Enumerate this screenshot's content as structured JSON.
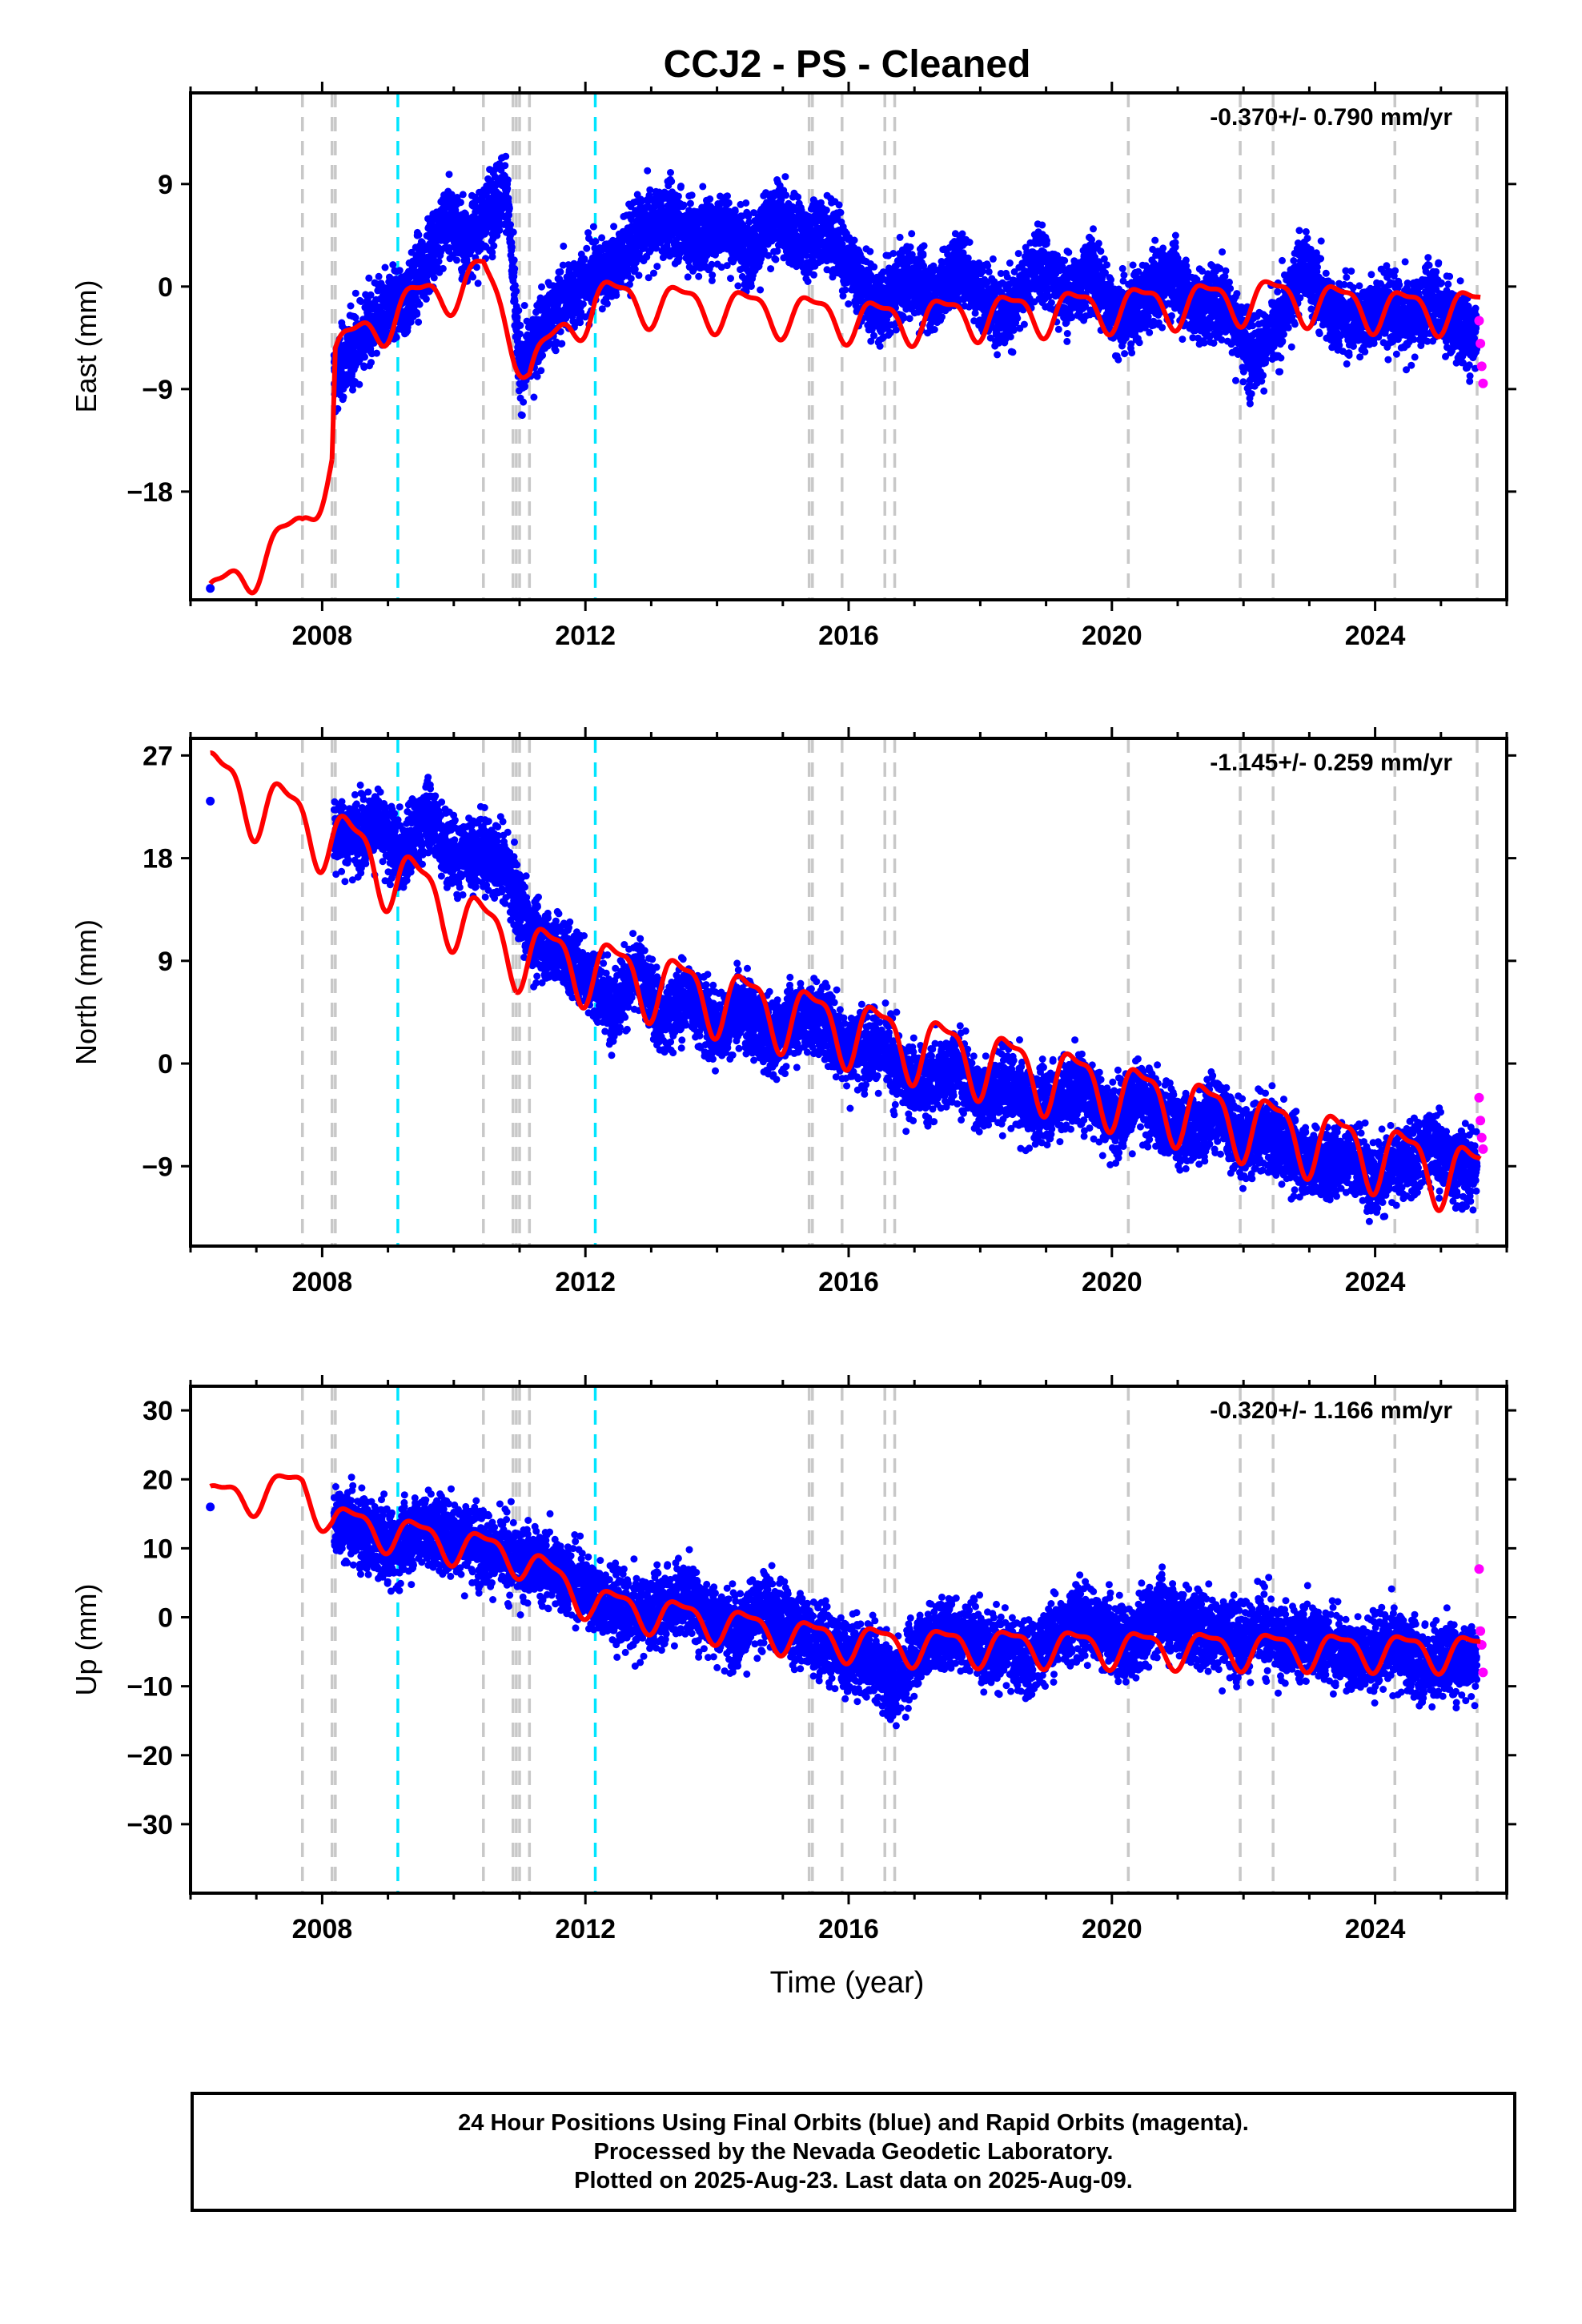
{
  "chart_data": {
    "type": "scatter",
    "title": "CCJ2  - PS - Cleaned",
    "xlabel": "Time (year)",
    "xlim": [
      2006.0,
      2026.0
    ],
    "x_ticks": [
      2008,
      2012,
      2016,
      2020,
      2024
    ],
    "colors": {
      "final_orbits": "#0000ff",
      "rapid_orbits": "#ff00ff",
      "model": "#ff0000",
      "equipment_change": "#c8c8c8",
      "earthquake": "#00e5ff"
    },
    "steps_gray": [
      2007.7,
      2008.15,
      2008.2,
      2010.45,
      2010.9,
      2010.95,
      2011.0,
      2011.15,
      2015.4,
      2015.45,
      2015.9,
      2016.55,
      2016.7,
      2020.25,
      2021.95,
      2022.45,
      2024.3,
      2025.55
    ],
    "steps_cyan": [
      2009.15,
      2012.15
    ],
    "panels": [
      {
        "ylabel": "East (mm)",
        "ylim": [
          -27.5,
          17.0
        ],
        "yticks": [
          -18,
          -9,
          0,
          9
        ],
        "rate": "-0.370+/- 0.790 mm/yr",
        "model": {
          "offsets": [
            [
              2006.3,
              -27.5
            ],
            [
              2007.7,
              -21
            ],
            [
              2008.15,
              -15
            ],
            [
              2008.2,
              -6
            ],
            [
              2009.15,
              -2
            ],
            [
              2010.45,
              1
            ],
            [
              2011.0,
              -5.5
            ],
            [
              2011.15,
              -7.5
            ],
            [
              2012.15,
              -1
            ],
            [
              2016.55,
              -3
            ],
            [
              2022.45,
              -1
            ],
            [
              2024.3,
              -2
            ]
          ],
          "trend": 0.0,
          "amplitude": 1.8,
          "segments": [
            [
              2006.3,
              2008.15
            ],
            [
              2008.15,
              2010.95
            ],
            [
              2010.95,
              2016.7
            ],
            [
              2016.7,
              2022.45
            ],
            [
              2022.45,
              2025.6
            ]
          ]
        },
        "series": [
          {
            "name": "Final Orbits",
            "points": [
              [
                2006.3,
                -26.5
              ],
              [
                2008.5,
                -5
              ],
              [
                2008.8,
                -3
              ],
              [
                2009.3,
                -1
              ],
              [
                2009.6,
                2.5
              ],
              [
                2009.9,
                6
              ],
              [
                2010.2,
                4
              ],
              [
                2010.6,
                7
              ],
              [
                2010.8,
                9
              ],
              [
                2011.0,
                -7.5
              ],
              [
                2011.3,
                -4
              ],
              [
                2011.7,
                -1
              ],
              [
                2012.1,
                1
              ],
              [
                2012.5,
                2
              ],
              [
                2012.9,
                5
              ],
              [
                2013.3,
                6
              ],
              [
                2013.7,
                4
              ],
              [
                2014.1,
                5.5
              ],
              [
                2014.5,
                3
              ],
              [
                2014.9,
                6
              ],
              [
                2015.3,
                4
              ],
              [
                2015.7,
                5
              ],
              [
                2016.1,
                1
              ],
              [
                2016.5,
                -2
              ],
              [
                2016.9,
                1
              ],
              [
                2017.3,
                -1
              ],
              [
                2017.7,
                2
              ],
              [
                2018.1,
                -1.5
              ],
              [
                2018.5,
                -2
              ],
              [
                2018.9,
                2.5
              ],
              [
                2019.3,
                -1
              ],
              [
                2019.7,
                1.5
              ],
              [
                2020.1,
                -3
              ],
              [
                2020.5,
                -1
              ],
              [
                2020.9,
                1
              ],
              [
                2021.3,
                -2
              ],
              [
                2021.7,
                -1
              ],
              [
                2022.1,
                -6
              ],
              [
                2022.5,
                -4
              ],
              [
                2022.9,
                2
              ],
              [
                2023.3,
                -2
              ],
              [
                2023.7,
                -3
              ],
              [
                2024.1,
                -2
              ],
              [
                2024.5,
                -3
              ],
              [
                2024.9,
                -1
              ],
              [
                2025.3,
                -4
              ]
            ]
          },
          {
            "name": "Rapid Orbits",
            "points": [
              [
                2025.58,
                -3
              ],
              [
                2025.6,
                -5
              ],
              [
                2025.62,
                -7
              ],
              [
                2025.64,
                -8.5
              ]
            ]
          }
        ]
      },
      {
        "ylabel": "North (mm)",
        "ylim": [
          -16.0,
          28.5
        ],
        "yticks": [
          -9,
          0,
          9,
          18,
          27
        ],
        "rate": "-1.145+/- 0.259 mm/yr",
        "model": {
          "offsets": [
            [
              2006.3,
              25
            ],
            [
              2008.15,
              20
            ],
            [
              2010.95,
              10
            ],
            [
              2025.6,
              -10
            ]
          ],
          "trend": 0.0,
          "amplitude": 2.8,
          "segments": [
            [
              2006.3,
              2008.15
            ],
            [
              2008.15,
              2010.95
            ],
            [
              2010.95,
              2025.6
            ]
          ]
        },
        "series": [
          {
            "name": "Final Orbits",
            "points": [
              [
                2006.3,
                23
              ],
              [
                2008.4,
                20
              ],
              [
                2008.8,
                21
              ],
              [
                2009.2,
                18
              ],
              [
                2009.6,
                22
              ],
              [
                2010.0,
                18
              ],
              [
                2010.4,
                19
              ],
              [
                2010.8,
                17
              ],
              [
                2011.2,
                11
              ],
              [
                2011.6,
                10
              ],
              [
                2012.0,
                8
              ],
              [
                2012.4,
                5
              ],
              [
                2012.8,
                8
              ],
              [
                2013.2,
                4
              ],
              [
                2013.6,
                6
              ],
              [
                2014.0,
                3
              ],
              [
                2014.4,
                5
              ],
              [
                2014.8,
                2
              ],
              [
                2015.2,
                4
              ],
              [
                2015.6,
                4
              ],
              [
                2016.0,
                1
              ],
              [
                2016.4,
                2
              ],
              [
                2016.8,
                -1
              ],
              [
                2017.2,
                -2
              ],
              [
                2017.6,
                0
              ],
              [
                2018.0,
                -3
              ],
              [
                2018.4,
                -2
              ],
              [
                2018.8,
                -4
              ],
              [
                2019.2,
                -3
              ],
              [
                2019.6,
                -2
              ],
              [
                2020.0,
                -5
              ],
              [
                2020.4,
                -3
              ],
              [
                2020.8,
                -5
              ],
              [
                2021.2,
                -6
              ],
              [
                2021.6,
                -4
              ],
              [
                2022.0,
                -7
              ],
              [
                2022.4,
                -6
              ],
              [
                2022.8,
                -8
              ],
              [
                2023.2,
                -9
              ],
              [
                2023.6,
                -8
              ],
              [
                2024.0,
                -10
              ],
              [
                2024.4,
                -9
              ],
              [
                2024.8,
                -7
              ],
              [
                2025.2,
                -9
              ]
            ]
          },
          {
            "name": "Rapid Orbits",
            "points": [
              [
                2025.58,
                -3
              ],
              [
                2025.6,
                -5
              ],
              [
                2025.62,
                -6.5
              ],
              [
                2025.64,
                -7.5
              ]
            ]
          }
        ]
      },
      {
        "ylabel": "Up (mm)",
        "ylim": [
          -40.0,
          33.5
        ],
        "yticks": [
          -30,
          -20,
          -10,
          0,
          10,
          20,
          30
        ],
        "rate": "-0.320+/- 1.166 mm/yr",
        "model": {
          "offsets": [
            [
              2006.3,
              17
            ],
            [
              2007.7,
              19
            ],
            [
              2008.15,
              14
            ],
            [
              2010.95,
              9
            ],
            [
              2012.15,
              2
            ],
            [
              2015.45,
              -3
            ],
            [
              2016.7,
              -4
            ],
            [
              2025.6,
              -5
            ]
          ],
          "trend": 0.0,
          "amplitude": 2.5,
          "segments": [
            [
              2006.3,
              2008.2
            ],
            [
              2008.2,
              2010.95
            ],
            [
              2010.95,
              2012.15
            ],
            [
              2012.15,
              2015.45
            ],
            [
              2015.45,
              2016.7
            ],
            [
              2016.7,
              2025.6
            ]
          ]
        },
        "series": [
          {
            "name": "Final Orbits",
            "points": [
              [
                2006.3,
                16
              ],
              [
                2008.3,
                14
              ],
              [
                2008.7,
                12
              ],
              [
                2009.1,
                10
              ],
              [
                2009.5,
                13
              ],
              [
                2009.9,
                12
              ],
              [
                2010.3,
                11
              ],
              [
                2010.7,
                9
              ],
              [
                2011.1,
                8
              ],
              [
                2011.5,
                7
              ],
              [
                2011.9,
                5
              ],
              [
                2012.3,
                2
              ],
              [
                2012.7,
                0
              ],
              [
                2013.1,
                1
              ],
              [
                2013.5,
                3
              ],
              [
                2013.9,
                0
              ],
              [
                2014.3,
                -2
              ],
              [
                2014.7,
                1
              ],
              [
                2015.1,
                -1
              ],
              [
                2015.5,
                -3
              ],
              [
                2015.9,
                -5
              ],
              [
                2016.3,
                -6
              ],
              [
                2016.7,
                -10
              ],
              [
                2017.1,
                -4
              ],
              [
                2017.5,
                -2
              ],
              [
                2017.9,
                -3
              ],
              [
                2018.3,
                -5
              ],
              [
                2018.7,
                -6
              ],
              [
                2019.1,
                -3
              ],
              [
                2019.5,
                0
              ],
              [
                2019.9,
                -2
              ],
              [
                2020.3,
                -4
              ],
              [
                2020.7,
                1
              ],
              [
                2021.1,
                -1
              ],
              [
                2021.5,
                -2
              ],
              [
                2021.9,
                -3
              ],
              [
                2022.3,
                -2
              ],
              [
                2022.7,
                -4
              ],
              [
                2023.1,
                -3
              ],
              [
                2023.5,
                -5
              ],
              [
                2023.9,
                -6
              ],
              [
                2024.3,
                -4
              ],
              [
                2024.7,
                -7
              ],
              [
                2025.1,
                -6
              ]
            ]
          },
          {
            "name": "Rapid Orbits",
            "points": [
              [
                2025.58,
                7
              ],
              [
                2025.6,
                -2
              ],
              [
                2025.62,
                -4
              ],
              [
                2025.64,
                -8
              ]
            ]
          }
        ]
      }
    ],
    "footer": [
      "24 Hour Positions Using Final Orbits (blue) and Rapid Orbits (magenta).",
      "Processed by the Nevada Geodetic Laboratory.",
      "Plotted on 2025-Aug-23. Last data on 2025-Aug-09."
    ]
  }
}
